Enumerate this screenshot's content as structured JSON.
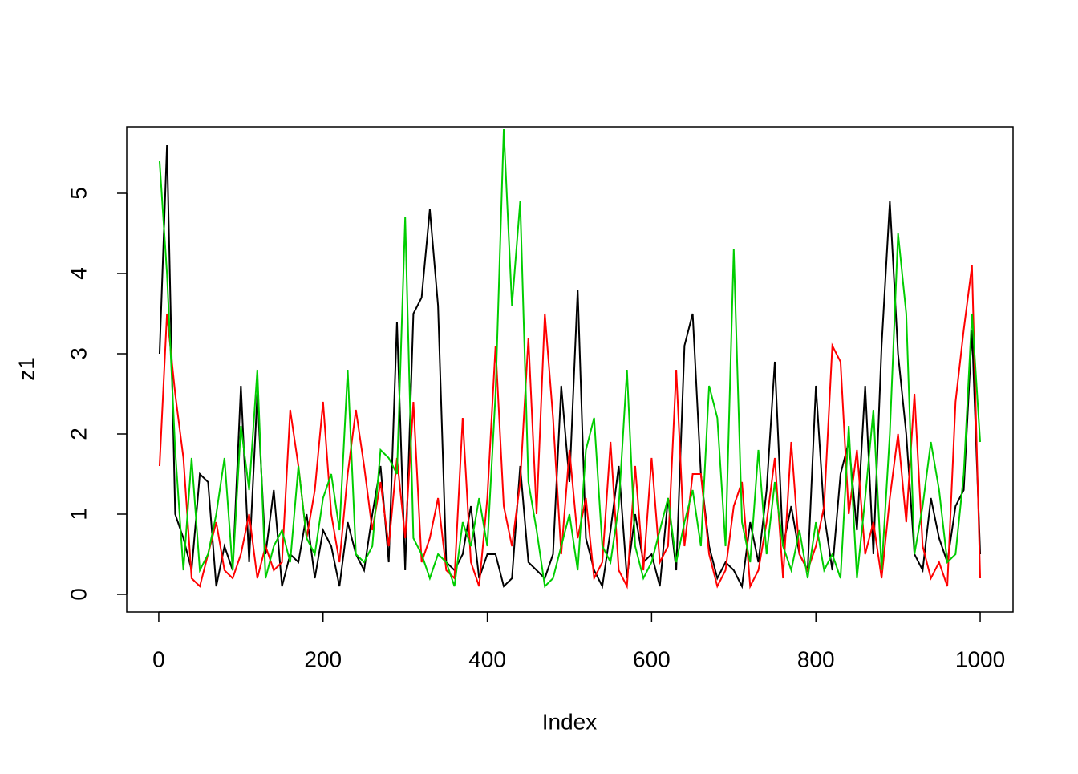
{
  "chart_data": {
    "type": "line",
    "x_label": "Index",
    "y_label": "z1",
    "x": [
      1,
      10,
      20,
      30,
      40,
      50,
      60,
      70,
      80,
      90,
      100,
      110,
      120,
      130,
      140,
      150,
      160,
      170,
      180,
      190,
      200,
      210,
      220,
      230,
      240,
      250,
      260,
      270,
      280,
      290,
      300,
      310,
      320,
      330,
      340,
      350,
      360,
      370,
      380,
      390,
      400,
      410,
      420,
      430,
      440,
      450,
      460,
      470,
      480,
      490,
      500,
      510,
      520,
      530,
      540,
      550,
      560,
      570,
      580,
      590,
      600,
      610,
      620,
      630,
      640,
      650,
      660,
      670,
      680,
      690,
      700,
      710,
      720,
      730,
      740,
      750,
      760,
      770,
      780,
      790,
      800,
      810,
      820,
      830,
      840,
      850,
      860,
      870,
      880,
      890,
      900,
      910,
      920,
      930,
      940,
      950,
      960,
      970,
      980,
      990,
      1000
    ],
    "series": [
      {
        "color": "#000000",
        "values": [
          3.0,
          5.6,
          1.0,
          0.7,
          0.3,
          1.5,
          1.4,
          0.1,
          0.6,
          0.3,
          2.6,
          0.4,
          2.5,
          0.5,
          1.3,
          0.1,
          0.5,
          0.4,
          1.0,
          0.2,
          0.8,
          0.6,
          0.1,
          0.9,
          0.5,
          0.3,
          1.0,
          1.6,
          0.4,
          3.4,
          0.3,
          3.5,
          3.7,
          4.8,
          3.6,
          0.4,
          0.3,
          0.5,
          1.1,
          0.2,
          0.5,
          0.5,
          0.1,
          0.2,
          1.6,
          0.4,
          0.3,
          0.2,
          0.5,
          2.6,
          1.4,
          3.8,
          0.7,
          0.3,
          0.1,
          0.8,
          1.6,
          0.2,
          1.0,
          0.4,
          0.5,
          0.1,
          1.2,
          0.3,
          3.1,
          3.5,
          1.5,
          0.6,
          0.2,
          0.4,
          0.3,
          0.1,
          0.9,
          0.4,
          1.3,
          2.9,
          0.6,
          1.1,
          0.5,
          0.3,
          2.6,
          1.0,
          0.3,
          1.5,
          1.9,
          0.8,
          2.6,
          0.5,
          3.1,
          4.9,
          3.0,
          2.0,
          0.5,
          0.3,
          1.2,
          0.7,
          0.4,
          1.1,
          1.3,
          3.3,
          0.5
        ]
      },
      {
        "color": "#ff0000",
        "values": [
          1.6,
          3.5,
          2.5,
          1.7,
          0.2,
          0.1,
          0.5,
          0.9,
          0.3,
          0.2,
          0.5,
          1.0,
          0.2,
          0.6,
          0.3,
          0.4,
          2.3,
          1.6,
          0.7,
          1.3,
          2.4,
          1.0,
          0.4,
          1.5,
          2.3,
          1.6,
          0.8,
          1.4,
          0.6,
          1.7,
          0.7,
          2.4,
          0.4,
          0.7,
          1.2,
          0.3,
          0.2,
          2.2,
          0.4,
          0.1,
          1.2,
          3.1,
          1.1,
          0.6,
          1.4,
          3.2,
          1.0,
          3.5,
          2.2,
          0.5,
          1.8,
          0.7,
          1.2,
          0.2,
          0.4,
          1.9,
          0.3,
          0.1,
          1.6,
          0.3,
          1.7,
          0.4,
          0.6,
          2.8,
          0.6,
          1.5,
          1.5,
          0.5,
          0.1,
          0.3,
          1.1,
          1.4,
          0.1,
          0.3,
          0.9,
          1.7,
          0.2,
          1.9,
          0.5,
          0.3,
          0.6,
          1.1,
          3.1,
          2.9,
          1.0,
          1.8,
          0.5,
          0.9,
          0.2,
          1.2,
          2.0,
          0.9,
          2.5,
          0.6,
          0.2,
          0.4,
          0.1,
          2.4,
          3.3,
          4.1,
          0.2
        ]
      },
      {
        "color": "#00cd00",
        "values": [
          5.4,
          4.0,
          1.8,
          0.3,
          1.7,
          0.3,
          0.5,
          1.0,
          1.7,
          0.3,
          2.1,
          1.3,
          2.8,
          0.2,
          0.6,
          0.8,
          0.4,
          1.6,
          0.7,
          0.5,
          1.2,
          1.5,
          0.8,
          2.8,
          0.5,
          0.4,
          0.6,
          1.8,
          1.7,
          1.5,
          4.7,
          0.7,
          0.5,
          0.2,
          0.5,
          0.4,
          0.1,
          0.9,
          0.6,
          1.2,
          0.6,
          2.5,
          5.8,
          3.6,
          4.9,
          1.4,
          0.8,
          0.1,
          0.2,
          0.6,
          1.0,
          0.3,
          1.8,
          2.2,
          0.6,
          0.4,
          1.1,
          2.8,
          0.6,
          0.2,
          0.4,
          0.8,
          1.2,
          0.4,
          0.9,
          1.3,
          0.6,
          2.6,
          2.2,
          0.6,
          4.3,
          0.9,
          0.4,
          1.8,
          0.5,
          1.4,
          0.6,
          0.3,
          0.8,
          0.2,
          0.9,
          0.3,
          0.5,
          0.2,
          2.1,
          0.2,
          1.2,
          2.3,
          0.3,
          2.0,
          4.5,
          3.5,
          0.5,
          1.1,
          1.9,
          1.3,
          0.4,
          0.5,
          1.5,
          3.5,
          1.9
        ]
      }
    ],
    "xlim": [
      -39,
      1040
    ],
    "ylim": [
      -0.22,
      5.83
    ],
    "xticks": [
      0,
      200,
      400,
      600,
      800,
      1000
    ],
    "yticks": [
      0,
      1,
      2,
      3,
      4,
      5
    ]
  }
}
